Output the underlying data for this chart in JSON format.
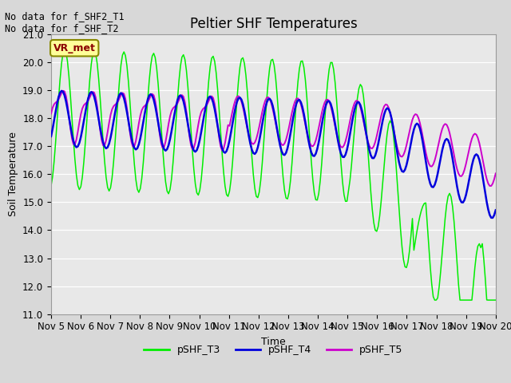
{
  "title": "Peltier SHF Temperatures",
  "xlabel": "Time",
  "ylabel": "Soil Temperature",
  "top_left_text": "No data for f_SHF2_T1\nNo data for f_SHF_T2",
  "annotation_box": "VR_met",
  "ylim": [
    11.0,
    21.0
  ],
  "yticks": [
    11.0,
    12.0,
    13.0,
    14.0,
    15.0,
    16.0,
    17.0,
    18.0,
    19.0,
    20.0,
    21.0
  ],
  "xtick_labels": [
    "Nov 5",
    "Nov 6",
    "Nov 7",
    "Nov 8",
    "Nov 9",
    "Nov 10",
    "Nov 11",
    "Nov 12",
    "Nov 13",
    "Nov 14",
    "Nov 15",
    "Nov 16",
    "Nov 17",
    "Nov 18",
    "Nov 19",
    "Nov 20"
  ],
  "line_T3_color": "#00ee00",
  "line_T4_color": "#0000dd",
  "line_T5_color": "#cc00cc",
  "bg_color": "#e0e0e0",
  "plot_bg_color": "#e8e8e8",
  "grid_color": "#ffffff",
  "fig_bg_color": "#d8d8d8",
  "title_fontsize": 12,
  "label_fontsize": 9,
  "tick_fontsize": 8.5,
  "legend_fontsize": 9
}
